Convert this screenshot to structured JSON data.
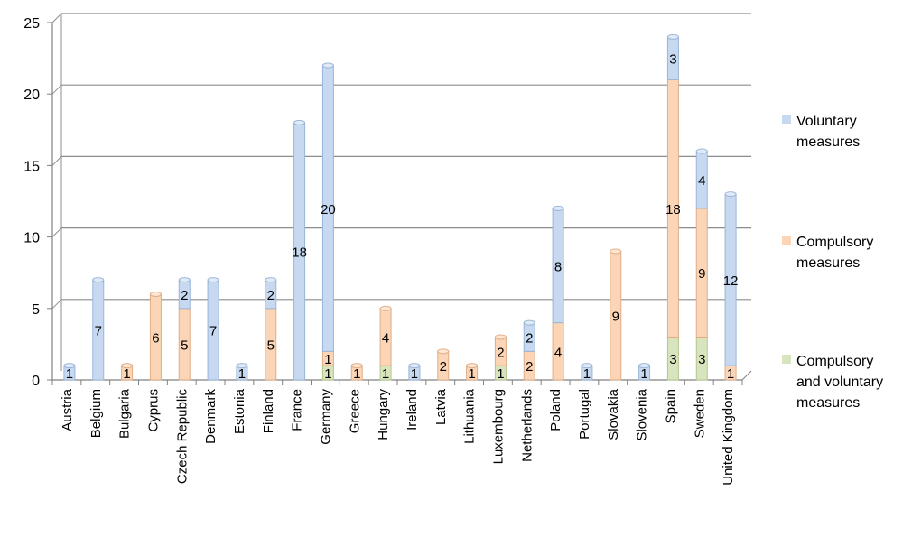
{
  "chart_data": {
    "type": "bar",
    "stacked": true,
    "style": "3d-cylinder",
    "categories": [
      "Austria",
      "Belgium",
      "Bulgaria",
      "Cyprus",
      "Czech Republic",
      "Denmark",
      "Estonia",
      "Finland",
      "France",
      "Germany",
      "Greece",
      "Hungary",
      "Ireland",
      "Latvia",
      "Lithuania",
      "Luxembourg",
      "Netherlands",
      "Poland",
      "Portugal",
      "Slovakia",
      "Slovenia",
      "Spain",
      "Sweden",
      "United Kingdom"
    ],
    "series": [
      {
        "name": "Compulsory and voluntary measures",
        "color": "#d7e4bd",
        "values": [
          0,
          0,
          0,
          0,
          0,
          0,
          0,
          0,
          0,
          1,
          0,
          1,
          0,
          0,
          0,
          1,
          0,
          0,
          0,
          0,
          0,
          3,
          3,
          0
        ]
      },
      {
        "name": "Compulsory measures",
        "color": "#fbd5b5",
        "values": [
          0,
          0,
          1,
          6,
          5,
          0,
          0,
          5,
          0,
          1,
          1,
          4,
          0,
          2,
          1,
          2,
          2,
          4,
          0,
          9,
          0,
          18,
          9,
          1
        ]
      },
      {
        "name": "Voluntary measures",
        "color": "#c6d9f1",
        "values": [
          1,
          7,
          0,
          0,
          2,
          7,
          1,
          2,
          18,
          20,
          0,
          0,
          1,
          0,
          0,
          0,
          2,
          8,
          1,
          0,
          1,
          3,
          4,
          12
        ]
      }
    ],
    "legend_order": [
      "Voluntary measures",
      "Compulsory measures",
      "Compulsory and voluntary measures"
    ],
    "ylim": [
      0,
      25
    ],
    "yticks": [
      0,
      5,
      10,
      15,
      20,
      25
    ],
    "grid": true,
    "legend_position": "right"
  },
  "legend": {
    "voluntary": [
      "Voluntary",
      "measures"
    ],
    "compulsory": [
      "Compulsory",
      "measures"
    ],
    "both": [
      "Compulsory",
      "and voluntary",
      "measures"
    ]
  }
}
